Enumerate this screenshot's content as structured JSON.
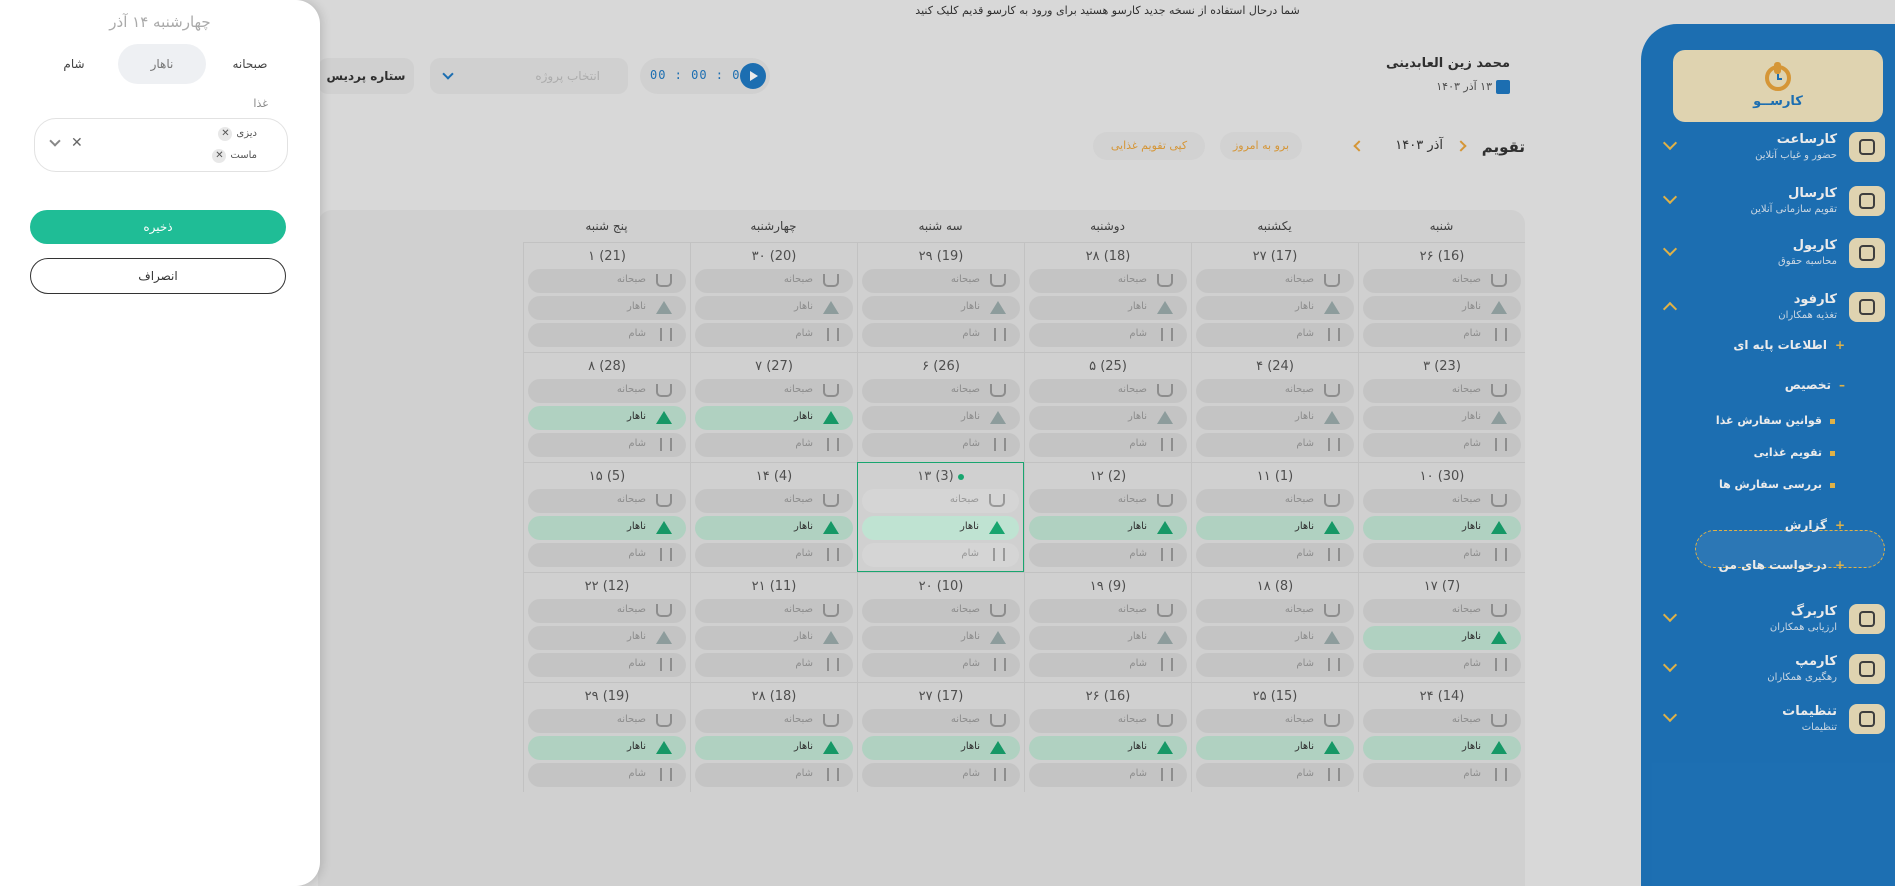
{
  "banner": "شما درحال استفاده از نسخه جدید کارسو هستید برای ورود به کارسو قدیم کلیک کنید",
  "logo_text": "کارســو",
  "sidebar": {
    "items": [
      {
        "title": "کارساعت",
        "sub": "حضور و غیاب آنلاین",
        "icon": "clock-icon"
      },
      {
        "title": "کارسال",
        "sub": "تقویم سازمانی آنلاین",
        "icon": "calendar-icon"
      },
      {
        "title": "کاریول",
        "sub": "محاسبه حقوق",
        "icon": "money-icon"
      },
      {
        "title": "کارفود",
        "sub": "تغذیه همکاران",
        "icon": "food-cover-icon"
      },
      {
        "title": "کاربرگ",
        "sub": "ارزیابی همکاران",
        "icon": "note-icon"
      },
      {
        "title": "کارمپ",
        "sub": "رهگیری همکاران",
        "icon": "map-pin-icon"
      },
      {
        "title": "تنظیمات",
        "sub": "تنظیمات",
        "icon": "gear-icon"
      }
    ],
    "sub_items": [
      {
        "mark": "+",
        "label": "اطلاعات پایه ای"
      },
      {
        "mark": "–",
        "label": "تخصیص"
      },
      {
        "mark": "+",
        "label": "گزارش"
      },
      {
        "mark": "+",
        "label": "درخواست های من"
      }
    ],
    "subsub_items": [
      {
        "label": "قوانین سفارش غذا"
      },
      {
        "label": "تقویم غذایی"
      },
      {
        "label": "بررسی سفارش ها"
      }
    ]
  },
  "header": {
    "user_name": "محمد زین العابدینی",
    "date": "۱۳ آذر ۱۴۰۳",
    "timer": "00 : 00 : 00",
    "project_placeholder": "انتخاب پروژه",
    "company": "ستاره پردیس"
  },
  "toolbar": {
    "title": "تقویم",
    "month": "آذر ۱۴۰۳",
    "today_btn": "برو به امروز",
    "copy_btn": "کپی تقویم غذایی"
  },
  "calendar": {
    "days": [
      "شنبه",
      "یکشنبه",
      "دوشنبه",
      "سه شنبه",
      "چهارشنبه",
      "پنج شنبه"
    ],
    "meals": [
      "صبحانه",
      "ناهار",
      "شام"
    ],
    "weeks": [
      [
        {
          "d": "۲۶ (16)",
          "on": []
        },
        {
          "d": "۲۷ (17)",
          "on": []
        },
        {
          "d": "۲۸ (18)",
          "on": []
        },
        {
          "d": "۲۹ (19)",
          "on": []
        },
        {
          "d": "۳۰ (20)",
          "on": []
        },
        {
          "d": "۱ (21)",
          "on": []
        }
      ],
      [
        {
          "d": "۳ (23)",
          "on": []
        },
        {
          "d": "۴ (24)",
          "on": []
        },
        {
          "d": "۵ (25)",
          "on": []
        },
        {
          "d": "۶ (26)",
          "on": []
        },
        {
          "d": "۷ (27)",
          "on": [
            1
          ]
        },
        {
          "d": "۸ (28)",
          "on": [
            1
          ]
        }
      ],
      [
        {
          "d": "۱۰ (30)",
          "on": [
            1
          ]
        },
        {
          "d": "۱۱ (1)",
          "on": [
            1
          ]
        },
        {
          "d": "۱۲ (2)",
          "on": [
            1
          ]
        },
        {
          "d": "۱۳ (3)",
          "on": [
            1
          ],
          "today": true
        },
        {
          "d": "۱۴ (4)",
          "on": [
            1
          ]
        },
        {
          "d": "۱۵ (5)",
          "on": [
            1
          ]
        }
      ],
      [
        {
          "d": "۱۷ (7)",
          "on": [
            1
          ]
        },
        {
          "d": "۱۸ (8)",
          "on": []
        },
        {
          "d": "۱۹ (9)",
          "on": []
        },
        {
          "d": "۲۰ (10)",
          "on": []
        },
        {
          "d": "۲۱ (11)",
          "on": []
        },
        {
          "d": "۲۲ (12)",
          "on": []
        }
      ],
      [
        {
          "d": "۲۴ (14)",
          "on": [
            1
          ]
        },
        {
          "d": "۲۵ (15)",
          "on": [
            1
          ]
        },
        {
          "d": "۲۶ (16)",
          "on": [
            1
          ]
        },
        {
          "d": "۲۷ (17)",
          "on": [
            1
          ]
        },
        {
          "d": "۲۸ (18)",
          "on": [
            1
          ]
        },
        {
          "d": "۲۹ (19)",
          "on": [
            1
          ]
        }
      ]
    ]
  },
  "panel": {
    "title": "چهارشنبه ۱۴ آذر",
    "tabs": [
      "صبحانه",
      "ناهار",
      "شام"
    ],
    "selected_tab": 1,
    "food_label": "غذا",
    "food_chips": [
      "دیزی",
      "ماست"
    ],
    "save": "ذخیره",
    "cancel": "انصراف"
  },
  "colors": {
    "primary": "#1f78c1",
    "accent": "#f2c14e",
    "green": "#1fbd96",
    "meal_on": "#bfe3d2"
  }
}
